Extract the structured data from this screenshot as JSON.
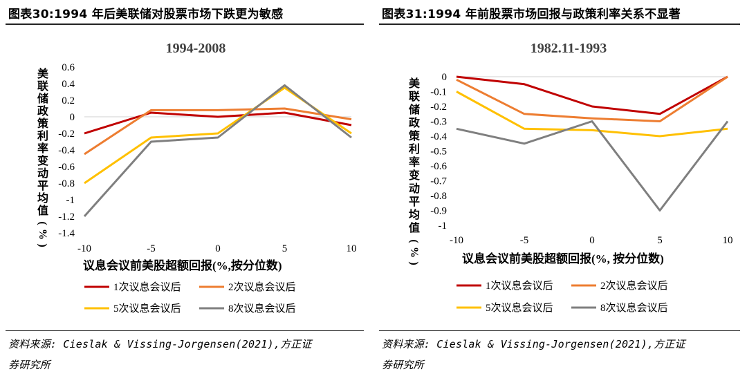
{
  "figures": [
    {
      "title": "图表30:1994 年后美联储对股票市场下跌更为敏感",
      "source_line1": "资料来源: Cieslak & Vissing-Jorgensen(2021),方正证",
      "source_line2": "券研究所"
    },
    {
      "title": "图表31:1994 年前股票市场回报与政策利率关系不显著",
      "source_line1": "资料来源: Cieslak & Vissing-Jorgensen(2021),方正证",
      "source_line2": "券研究所"
    }
  ],
  "chart_data": [
    {
      "type": "line",
      "title": "1994-2008",
      "xlabel": "议息会议前美股超额回报(%,按分位数)",
      "ylabel": "美联储政策利率变动平均值(%)",
      "x": [
        -10,
        -5,
        0,
        5,
        10
      ],
      "x_ticks": [
        "-10",
        "-5",
        "0",
        "5",
        "10"
      ],
      "ylim": [
        -1.4,
        0.6
      ],
      "y_ticks": [
        "0.6",
        "0.4",
        "0.2",
        "0",
        "-0.2",
        "-0.4",
        "-0.6",
        "-0.8",
        "-1",
        "-1.2",
        "-1.4"
      ],
      "grid": false,
      "legend_position": "bottom",
      "series": [
        {
          "name": "1次议息会议后",
          "color": "#C00000",
          "values": [
            -0.2,
            0.05,
            0.0,
            0.05,
            -0.1
          ]
        },
        {
          "name": "2次议息会议后",
          "color": "#ED7D31",
          "values": [
            -0.45,
            0.08,
            0.08,
            0.1,
            -0.03
          ]
        },
        {
          "name": "5次议息会议后",
          "color": "#FFC000",
          "values": [
            -0.8,
            -0.25,
            -0.2,
            0.35,
            -0.2
          ]
        },
        {
          "name": "8次议息会议后",
          "color": "#7F7F7F",
          "values": [
            -1.2,
            -0.3,
            -0.25,
            0.38,
            -0.25
          ]
        }
      ]
    },
    {
      "type": "line",
      "title": "1982.11-1993",
      "xlabel": "议息会议前美股超额回报(%, 按分位数)",
      "ylabel": "美联储政策利率变动平均值(%)",
      "x": [
        -10,
        -5,
        0,
        5,
        10
      ],
      "x_ticks": [
        "-10",
        "-5",
        "0",
        "5",
        "10"
      ],
      "ylim": [
        -1,
        0
      ],
      "y_ticks": [
        "0",
        "-0.1",
        "-0.2",
        "-0.3",
        "-0.4",
        "-0.5",
        "-0.6",
        "-0.7",
        "-0.8",
        "-0.9",
        "-1"
      ],
      "grid": false,
      "legend_position": "bottom",
      "series": [
        {
          "name": "1次议息会议后",
          "color": "#C00000",
          "values": [
            0.0,
            -0.05,
            -0.2,
            -0.25,
            0.0
          ]
        },
        {
          "name": "2次议息会议后",
          "color": "#ED7D31",
          "values": [
            -0.02,
            -0.25,
            -0.28,
            -0.3,
            0.0
          ]
        },
        {
          "name": "5次议息会议后",
          "color": "#FFC000",
          "values": [
            -0.1,
            -0.35,
            -0.36,
            -0.4,
            -0.35
          ]
        },
        {
          "name": "8次议息会议后",
          "color": "#7F7F7F",
          "values": [
            -0.35,
            -0.45,
            -0.3,
            -0.9,
            -0.3
          ]
        }
      ]
    }
  ]
}
